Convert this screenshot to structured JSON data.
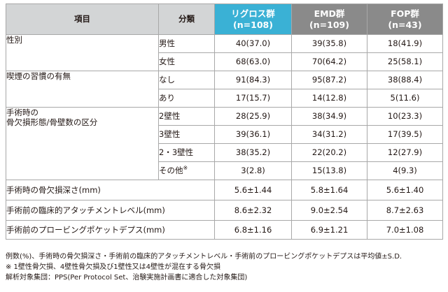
{
  "header": {
    "item": "項目",
    "category": "分類",
    "groups": [
      {
        "name": "リグロス群",
        "n": "(n=108)"
      },
      {
        "name": "EMD群",
        "n": "(n=109)"
      },
      {
        "name": "FOP群",
        "n": "(n=43)"
      }
    ]
  },
  "colors": {
    "header_gray": "#d3d5d6",
    "regroth": "#3ab1d5",
    "emd": "#8a8a8a",
    "fop": "#8a8a8a"
  },
  "sections": {
    "sex": {
      "label": "性別",
      "rows": [
        {
          "cat": "男性",
          "v": [
            "40(37.0)",
            "39(35.8)",
            "18(41.9)"
          ]
        },
        {
          "cat": "女性",
          "v": [
            "68(63.0)",
            "70(64.2)",
            "25(58.1)"
          ]
        }
      ]
    },
    "smoking": {
      "label": "喫煙の習慣の有無",
      "rows": [
        {
          "cat": "なし",
          "v": [
            "91(84.3)",
            "95(87.2)",
            "38(88.4)"
          ]
        },
        {
          "cat": "あり",
          "v": [
            "17(15.7)",
            "14(12.8)",
            "5(11.6)"
          ]
        }
      ]
    },
    "defect": {
      "label_line1": "手術時の",
      "label_line2": "骨欠損形態/骨壁数の区分",
      "rows": [
        {
          "cat": "2壁性",
          "v": [
            "28(25.9)",
            "38(34.9)",
            "10(23.3)"
          ]
        },
        {
          "cat": "3壁性",
          "v": [
            "39(36.1)",
            "34(31.2)",
            "17(39.5)"
          ]
        },
        {
          "cat": "2・3壁性",
          "v": [
            "38(35.2)",
            "22(20.2)",
            "12(27.9)"
          ]
        },
        {
          "cat": "その他",
          "mark": "※",
          "v": [
            "3(2.8)",
            "15(13.8)",
            "4(9.3)"
          ]
        }
      ]
    }
  },
  "measures": [
    {
      "label": "手術時の骨欠損深さ(mm)",
      "v": [
        "5.6±1.44",
        "5.8±1.64",
        "5.6±1.40"
      ]
    },
    {
      "label": "手術前の臨床的アタッチメントレベル(mm)",
      "v": [
        "8.6±2.32",
        "9.0±2.54",
        "8.7±2.63"
      ]
    },
    {
      "label": "手術前のプロービングポケットデプス(mm)",
      "v": [
        "6.8±1.16",
        "6.9±1.21",
        "7.0±1.08"
      ]
    }
  ],
  "notes": [
    "例数(%)、手術時の骨欠損深さ・手術前の臨床的アタッチメントレベル・手術前のプロービングポケットデプスは平均値±S.D.",
    "※ 1壁性骨欠損、4壁性骨欠損及び1壁性又は4壁性が混在する骨欠損",
    "解析対象集団：PPS(Per Protocol Set、治験実施計画書に適合した対象集団)"
  ]
}
